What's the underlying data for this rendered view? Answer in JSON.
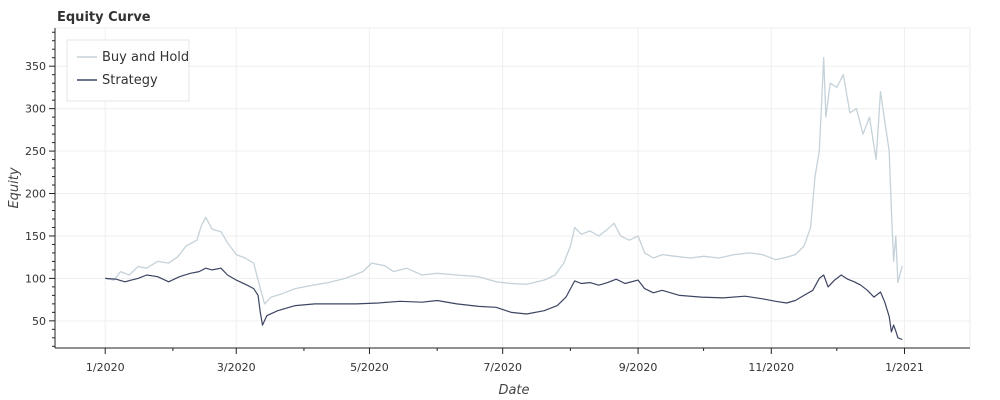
{
  "chart_data": {
    "type": "line",
    "title": "Equity Curve",
    "xlabel": "Date",
    "ylabel": "Equity",
    "xlim": [
      "2019-12-09",
      "2021-01-31"
    ],
    "ylim": [
      18,
      395
    ],
    "x_ticks": [
      "1/2020",
      "3/2020",
      "5/2020",
      "7/2020",
      "9/2020",
      "11/2020",
      "1/2021"
    ],
    "y_ticks": [
      50,
      100,
      150,
      200,
      250,
      300,
      350
    ],
    "grid": true,
    "legend_position": "top-left",
    "series": [
      {
        "name": "Buy and Hold",
        "color": "#c5d2d9",
        "points": [
          [
            "2020-01-01",
            100
          ],
          [
            "2020-01-05",
            98
          ],
          [
            "2020-01-08",
            108
          ],
          [
            "2020-01-12",
            104
          ],
          [
            "2020-01-16",
            114
          ],
          [
            "2020-01-20",
            112
          ],
          [
            "2020-01-25",
            120
          ],
          [
            "2020-01-30",
            118
          ],
          [
            "2020-02-03",
            125
          ],
          [
            "2020-02-07",
            138
          ],
          [
            "2020-02-12",
            145
          ],
          [
            "2020-02-14",
            162
          ],
          [
            "2020-02-16",
            172
          ],
          [
            "2020-02-19",
            158
          ],
          [
            "2020-02-23",
            155
          ],
          [
            "2020-02-26",
            142
          ],
          [
            "2020-03-01",
            128
          ],
          [
            "2020-03-05",
            124
          ],
          [
            "2020-03-09",
            118
          ],
          [
            "2020-03-12",
            88
          ],
          [
            "2020-03-14",
            70
          ],
          [
            "2020-03-17",
            78
          ],
          [
            "2020-03-22",
            82
          ],
          [
            "2020-03-28",
            88
          ],
          [
            "2020-04-05",
            92
          ],
          [
            "2020-04-12",
            95
          ],
          [
            "2020-04-20",
            100
          ],
          [
            "2020-04-28",
            108
          ],
          [
            "2020-05-02",
            118
          ],
          [
            "2020-05-08",
            115
          ],
          [
            "2020-05-12",
            108
          ],
          [
            "2020-05-18",
            112
          ],
          [
            "2020-05-25",
            104
          ],
          [
            "2020-06-01",
            106
          ],
          [
            "2020-06-10",
            104
          ],
          [
            "2020-06-20",
            102
          ],
          [
            "2020-06-28",
            96
          ],
          [
            "2020-07-05",
            94
          ],
          [
            "2020-07-12",
            93
          ],
          [
            "2020-07-20",
            98
          ],
          [
            "2020-07-25",
            104
          ],
          [
            "2020-07-29",
            118
          ],
          [
            "2020-08-01",
            138
          ],
          [
            "2020-08-03",
            160
          ],
          [
            "2020-08-06",
            152
          ],
          [
            "2020-08-10",
            156
          ],
          [
            "2020-08-14",
            150
          ],
          [
            "2020-08-18",
            158
          ],
          [
            "2020-08-21",
            165
          ],
          [
            "2020-08-24",
            150
          ],
          [
            "2020-08-28",
            145
          ],
          [
            "2020-09-01",
            150
          ],
          [
            "2020-09-04",
            130
          ],
          [
            "2020-09-08",
            124
          ],
          [
            "2020-09-12",
            128
          ],
          [
            "2020-09-18",
            126
          ],
          [
            "2020-09-25",
            124
          ],
          [
            "2020-10-01",
            126
          ],
          [
            "2020-10-08",
            124
          ],
          [
            "2020-10-15",
            128
          ],
          [
            "2020-10-22",
            130
          ],
          [
            "2020-10-28",
            128
          ],
          [
            "2020-11-03",
            122
          ],
          [
            "2020-11-08",
            125
          ],
          [
            "2020-11-12",
            128
          ],
          [
            "2020-11-16",
            138
          ],
          [
            "2020-11-19",
            160
          ],
          [
            "2020-11-21",
            220
          ],
          [
            "2020-11-23",
            250
          ],
          [
            "2020-11-25",
            360
          ],
          [
            "2020-11-26",
            290
          ],
          [
            "2020-11-28",
            330
          ],
          [
            "2020-12-01",
            325
          ],
          [
            "2020-12-04",
            340
          ],
          [
            "2020-12-07",
            295
          ],
          [
            "2020-12-10",
            300
          ],
          [
            "2020-12-13",
            270
          ],
          [
            "2020-12-16",
            290
          ],
          [
            "2020-12-19",
            240
          ],
          [
            "2020-12-21",
            320
          ],
          [
            "2020-12-23",
            285
          ],
          [
            "2020-12-25",
            250
          ],
          [
            "2020-12-26",
            180
          ],
          [
            "2020-12-27",
            120
          ],
          [
            "2020-12-28",
            150
          ],
          [
            "2020-12-29",
            95
          ],
          [
            "2020-12-31",
            115
          ]
        ]
      },
      {
        "name": "Strategy",
        "color": "#3d4562",
        "points": [
          [
            "2020-01-01",
            100
          ],
          [
            "2020-01-06",
            99
          ],
          [
            "2020-01-10",
            96
          ],
          [
            "2020-01-13",
            98
          ],
          [
            "2020-01-16",
            100
          ],
          [
            "2020-01-20",
            104
          ],
          [
            "2020-01-25",
            102
          ],
          [
            "2020-01-30",
            96
          ],
          [
            "2020-02-04",
            102
          ],
          [
            "2020-02-09",
            106
          ],
          [
            "2020-02-13",
            108
          ],
          [
            "2020-02-16",
            112
          ],
          [
            "2020-02-19",
            110
          ],
          [
            "2020-02-23",
            112
          ],
          [
            "2020-02-26",
            104
          ],
          [
            "2020-03-01",
            98
          ],
          [
            "2020-03-06",
            92
          ],
          [
            "2020-03-09",
            88
          ],
          [
            "2020-03-11",
            80
          ],
          [
            "2020-03-12",
            60
          ],
          [
            "2020-03-13",
            45
          ],
          [
            "2020-03-15",
            56
          ],
          [
            "2020-03-20",
            62
          ],
          [
            "2020-03-28",
            68
          ],
          [
            "2020-04-06",
            70
          ],
          [
            "2020-04-15",
            70
          ],
          [
            "2020-04-25",
            70
          ],
          [
            "2020-05-05",
            71
          ],
          [
            "2020-05-15",
            73
          ],
          [
            "2020-05-25",
            72
          ],
          [
            "2020-06-01",
            74
          ],
          [
            "2020-06-10",
            70
          ],
          [
            "2020-06-20",
            67
          ],
          [
            "2020-06-28",
            66
          ],
          [
            "2020-07-05",
            60
          ],
          [
            "2020-07-12",
            58
          ],
          [
            "2020-07-20",
            62
          ],
          [
            "2020-07-26",
            68
          ],
          [
            "2020-07-30",
            78
          ],
          [
            "2020-08-03",
            97
          ],
          [
            "2020-08-06",
            94
          ],
          [
            "2020-08-10",
            95
          ],
          [
            "2020-08-14",
            92
          ],
          [
            "2020-08-18",
            95
          ],
          [
            "2020-08-22",
            99
          ],
          [
            "2020-08-26",
            94
          ],
          [
            "2020-09-01",
            98
          ],
          [
            "2020-09-04",
            88
          ],
          [
            "2020-09-08",
            83
          ],
          [
            "2020-09-12",
            86
          ],
          [
            "2020-09-20",
            80
          ],
          [
            "2020-09-30",
            78
          ],
          [
            "2020-10-10",
            77
          ],
          [
            "2020-10-20",
            79
          ],
          [
            "2020-10-28",
            76
          ],
          [
            "2020-11-03",
            73
          ],
          [
            "2020-11-08",
            71
          ],
          [
            "2020-11-12",
            74
          ],
          [
            "2020-11-16",
            80
          ],
          [
            "2020-11-20",
            86
          ],
          [
            "2020-11-23",
            100
          ],
          [
            "2020-11-25",
            104
          ],
          [
            "2020-11-27",
            90
          ],
          [
            "2020-11-30",
            98
          ],
          [
            "2020-12-03",
            104
          ],
          [
            "2020-12-06",
            99
          ],
          [
            "2020-12-09",
            96
          ],
          [
            "2020-12-12",
            92
          ],
          [
            "2020-12-15",
            86
          ],
          [
            "2020-12-18",
            78
          ],
          [
            "2020-12-21",
            84
          ],
          [
            "2020-12-23",
            72
          ],
          [
            "2020-12-25",
            55
          ],
          [
            "2020-12-26",
            37
          ],
          [
            "2020-12-27",
            45
          ],
          [
            "2020-12-28",
            38
          ],
          [
            "2020-12-29",
            30
          ],
          [
            "2020-12-31",
            28
          ]
        ]
      }
    ]
  }
}
